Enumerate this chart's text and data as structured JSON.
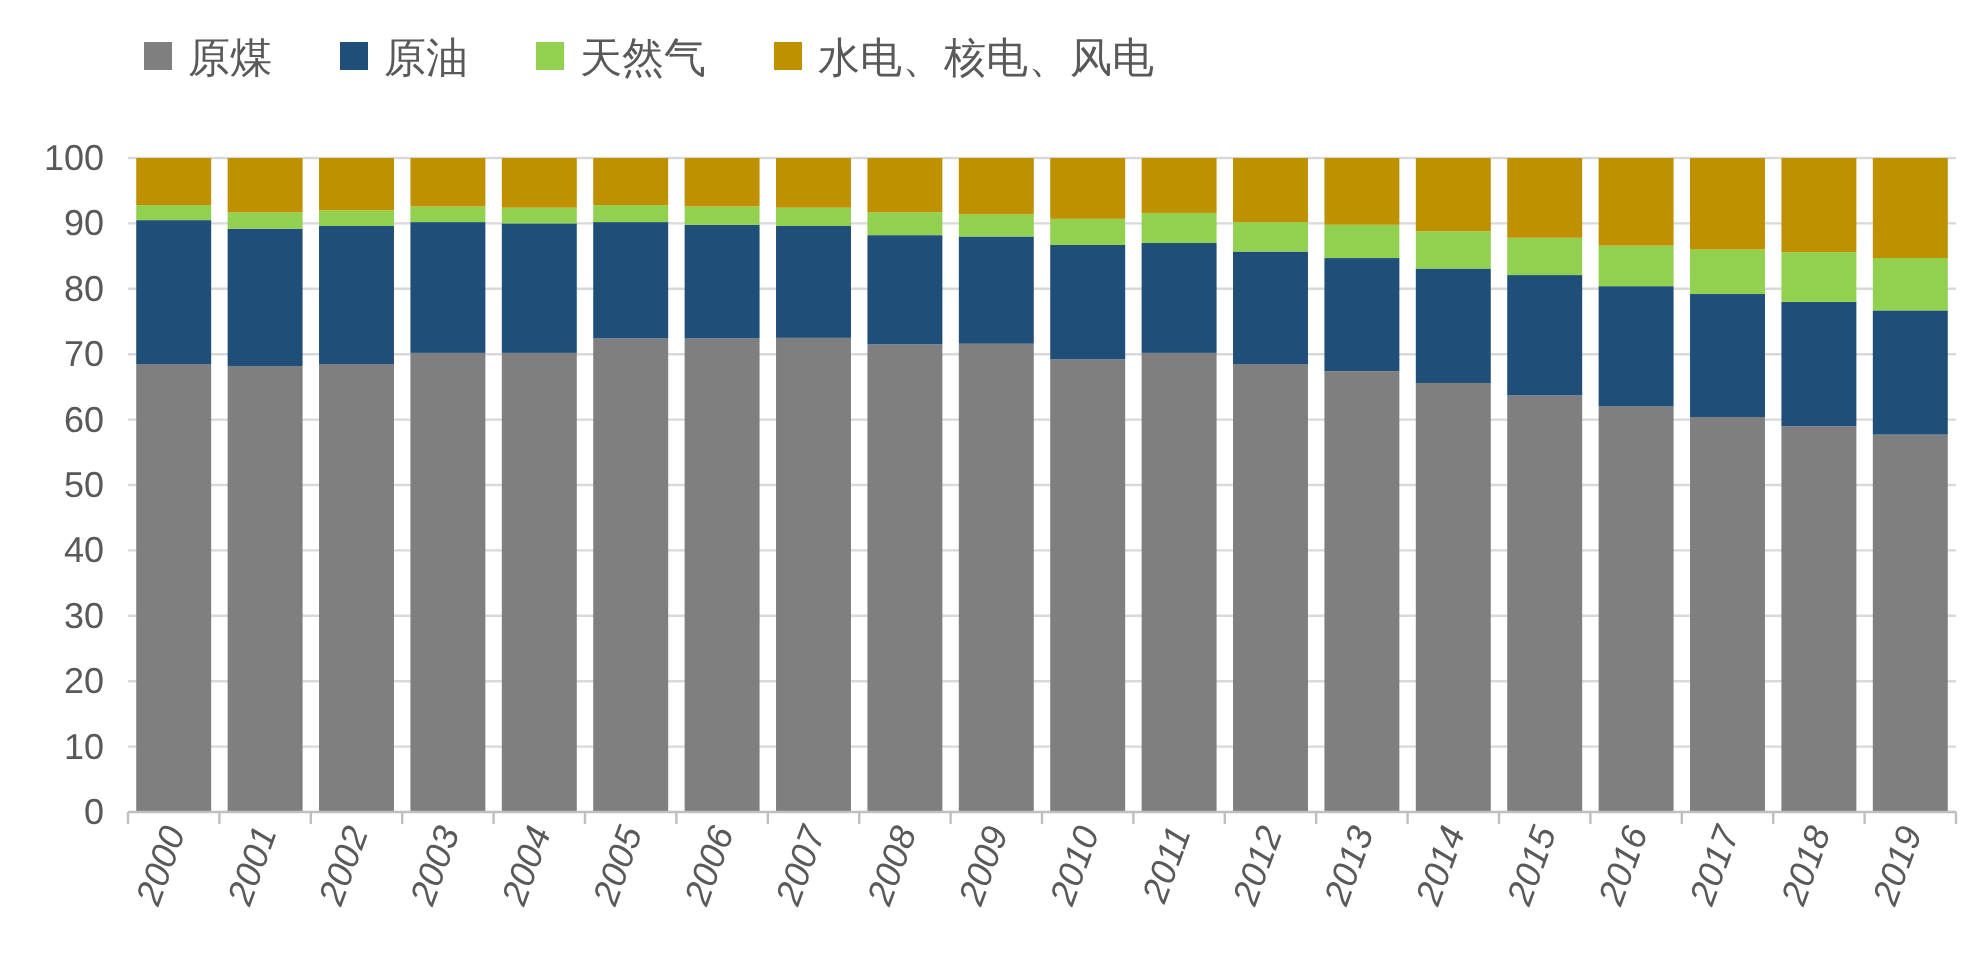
{
  "chart_data": {
    "type": "bar",
    "stacked": true,
    "categories": [
      "2000",
      "2001",
      "2002",
      "2003",
      "2004",
      "2005",
      "2006",
      "2007",
      "2008",
      "2009",
      "2010",
      "2011",
      "2012",
      "2013",
      "2014",
      "2015",
      "2016",
      "2017",
      "2018",
      "2019"
    ],
    "series": [
      {
        "name": "原煤",
        "color": "#7f7f7f",
        "values": [
          68.5,
          68.2,
          68.5,
          70.2,
          70.2,
          72.4,
          72.4,
          72.5,
          71.5,
          71.6,
          69.2,
          70.2,
          68.5,
          67.4,
          65.6,
          63.7,
          62.0,
          60.4,
          59.0,
          57.7
        ]
      },
      {
        "name": "原油",
        "color": "#1f4e79",
        "values": [
          22.0,
          21.0,
          21.1,
          20.0,
          19.8,
          17.8,
          17.4,
          17.1,
          16.7,
          16.4,
          17.5,
          16.8,
          17.2,
          17.3,
          17.5,
          18.4,
          18.4,
          18.8,
          19.0,
          19.0
        ]
      },
      {
        "name": "天然气",
        "color": "#92d050",
        "values": [
          2.3,
          2.5,
          2.4,
          2.4,
          2.4,
          2.6,
          2.8,
          2.8,
          3.5,
          3.4,
          4.0,
          4.6,
          4.5,
          5.1,
          5.7,
          5.7,
          6.2,
          6.8,
          7.6,
          8.0
        ]
      },
      {
        "name": "水电、核电、风电",
        "color": "#bf9000",
        "values": [
          7.2,
          8.3,
          8.0,
          7.4,
          7.6,
          7.2,
          7.4,
          7.6,
          8.3,
          8.6,
          9.3,
          8.4,
          9.8,
          10.2,
          11.2,
          12.2,
          13.4,
          14.0,
          14.4,
          15.3
        ]
      }
    ],
    "ylim": [
      0,
      100
    ],
    "yticks": [
      0,
      10,
      20,
      30,
      40,
      50,
      60,
      70,
      80,
      90,
      100
    ],
    "grid": "y",
    "legend": "top left"
  }
}
